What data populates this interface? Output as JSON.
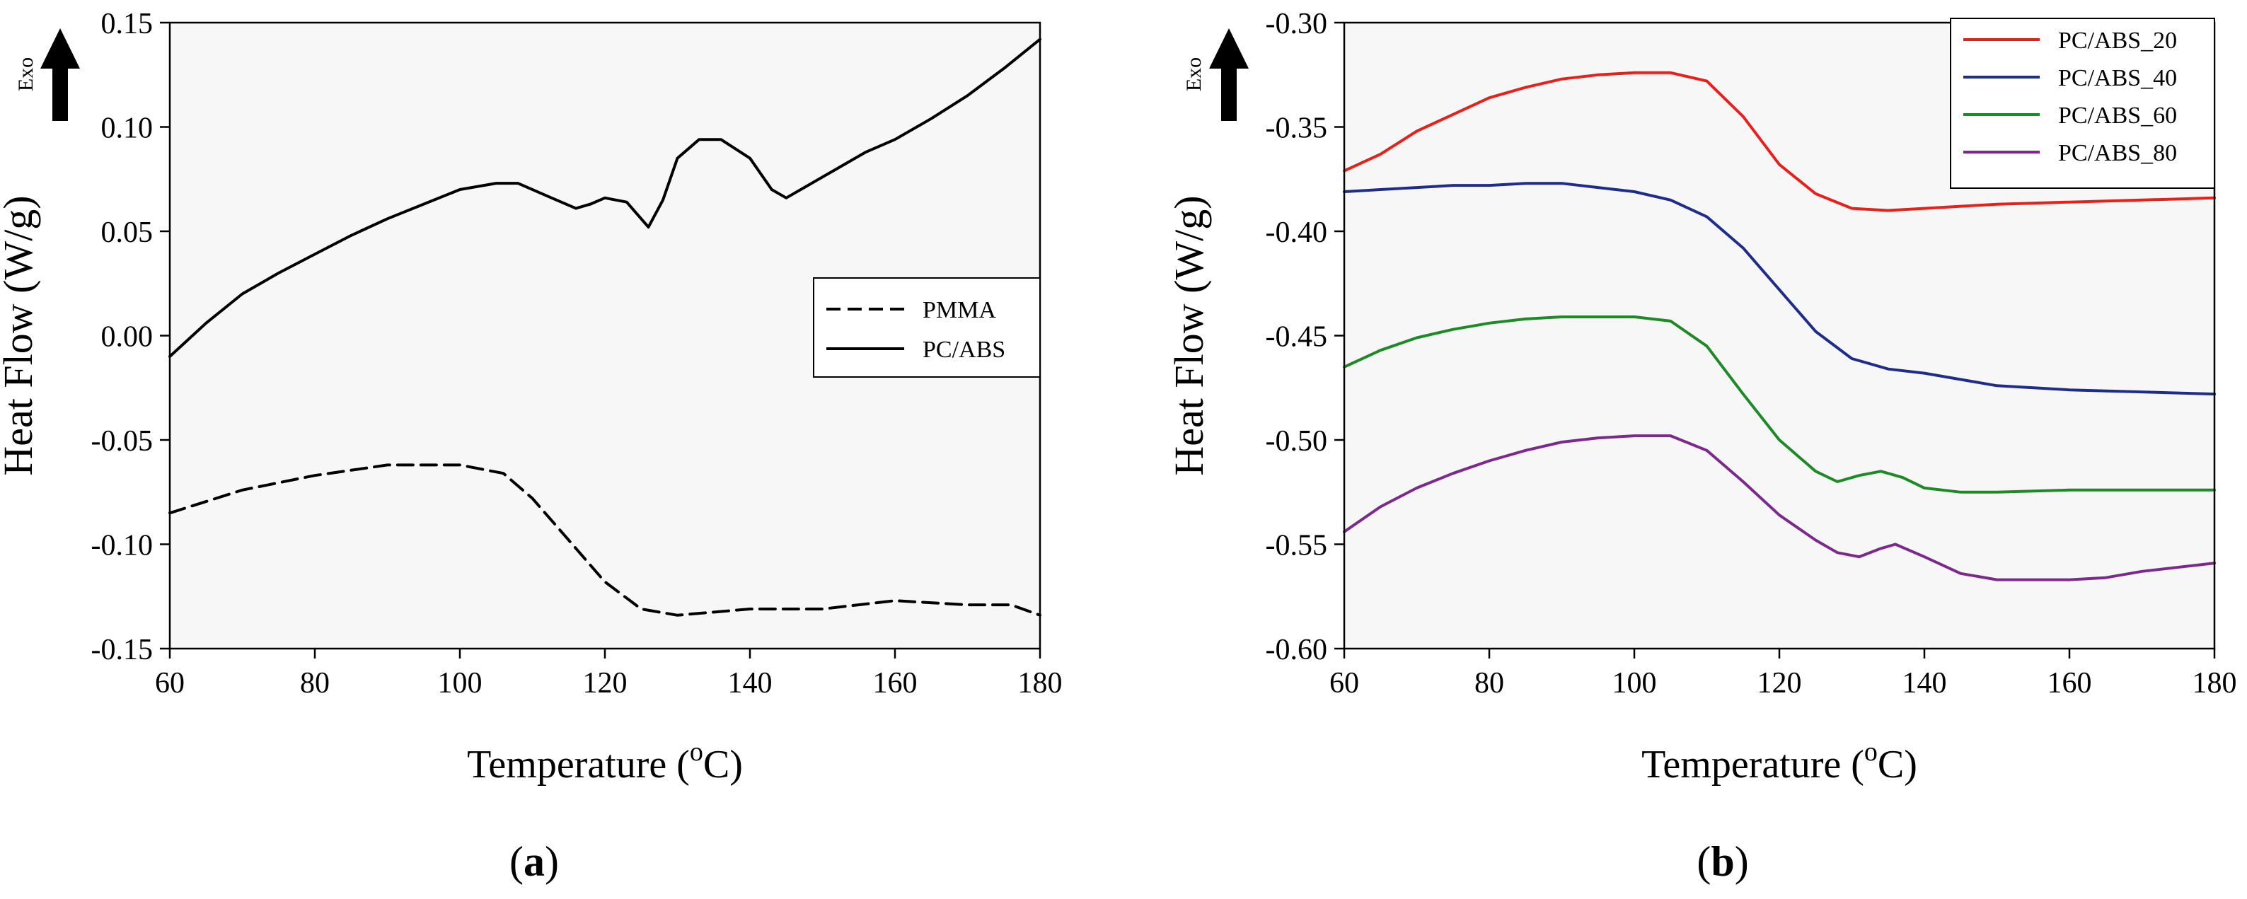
{
  "chart_data": [
    {
      "panel": "a",
      "panel_label": "(a)",
      "type": "line",
      "xlabel": "Temperature (oC)",
      "xlabel_parts": {
        "pre": "Temperature (",
        "sup": "o",
        "post": "C)"
      },
      "ylabel": "Heat Flow (W/g)",
      "exo_label": "Exo",
      "xlim": [
        60,
        180
      ],
      "ylim": [
        -0.15,
        0.15
      ],
      "xticks": [
        60,
        80,
        100,
        120,
        140,
        160,
        180
      ],
      "xtick_labels": [
        "60",
        "80",
        "100",
        "120",
        "140",
        "160",
        "180"
      ],
      "yticks": [
        -0.15,
        -0.1,
        -0.05,
        0.0,
        0.05,
        0.1,
        0.15
      ],
      "ytick_labels": [
        "-0.15",
        "-0.10",
        "-0.05",
        "0.00",
        "0.05",
        "0.10",
        "0.15"
      ],
      "legend_position": "middle-right",
      "grid": false,
      "series": [
        {
          "name": "PMMA",
          "style": "dashed",
          "color": "#000000",
          "points": [
            [
              60,
              -0.085
            ],
            [
              70,
              -0.074
            ],
            [
              80,
              -0.067
            ],
            [
              90,
              -0.062
            ],
            [
              100,
              -0.062
            ],
            [
              106,
              -0.066
            ],
            [
              110,
              -0.078
            ],
            [
              115,
              -0.098
            ],
            [
              120,
              -0.118
            ],
            [
              125,
              -0.131
            ],
            [
              130,
              -0.134
            ],
            [
              140,
              -0.131
            ],
            [
              150,
              -0.131
            ],
            [
              160,
              -0.127
            ],
            [
              170,
              -0.129
            ],
            [
              176,
              -0.129
            ],
            [
              180,
              -0.134
            ]
          ]
        },
        {
          "name": "PC/ABS",
          "style": "solid",
          "color": "#000000",
          "points": [
            [
              60,
              -0.01
            ],
            [
              65,
              0.006
            ],
            [
              70,
              0.02
            ],
            [
              75,
              0.03
            ],
            [
              80,
              0.039
            ],
            [
              85,
              0.048
            ],
            [
              90,
              0.056
            ],
            [
              95,
              0.063
            ],
            [
              100,
              0.07
            ],
            [
              105,
              0.073
            ],
            [
              108,
              0.073
            ],
            [
              112,
              0.067
            ],
            [
              116,
              0.061
            ],
            [
              118,
              0.063
            ],
            [
              120,
              0.066
            ],
            [
              123,
              0.064
            ],
            [
              126,
              0.052
            ],
            [
              128,
              0.065
            ],
            [
              130,
              0.085
            ],
            [
              133,
              0.094
            ],
            [
              136,
              0.094
            ],
            [
              140,
              0.085
            ],
            [
              143,
              0.07
            ],
            [
              145,
              0.066
            ],
            [
              148,
              0.072
            ],
            [
              152,
              0.08
            ],
            [
              156,
              0.088
            ],
            [
              160,
              0.094
            ],
            [
              165,
              0.104
            ],
            [
              170,
              0.115
            ],
            [
              175,
              0.128
            ],
            [
              180,
              0.142
            ]
          ]
        }
      ]
    },
    {
      "panel": "b",
      "panel_label": "(b)",
      "type": "line",
      "xlabel": "Temperature (oC)",
      "xlabel_parts": {
        "pre": "Temperature (",
        "sup": "o",
        "post": "C)"
      },
      "ylabel": "Heat Flow (W/g)",
      "exo_label": "Exo",
      "xlim": [
        60,
        180
      ],
      "ylim": [
        -0.6,
        -0.3
      ],
      "xticks": [
        60,
        80,
        100,
        120,
        140,
        160,
        180
      ],
      "xtick_labels": [
        "60",
        "80",
        "100",
        "120",
        "140",
        "160",
        "180"
      ],
      "yticks": [
        -0.6,
        -0.55,
        -0.5,
        -0.45,
        -0.4,
        -0.35,
        -0.3
      ],
      "ytick_labels": [
        "-0.60",
        "-0.55",
        "-0.50",
        "-0.45",
        "-0.40",
        "-0.35",
        "-0.30"
      ],
      "legend_position": "top-right",
      "grid": false,
      "series": [
        {
          "name": "PC/ABS_20",
          "style": "solid",
          "color": "#e8201a",
          "points": [
            [
              60,
              -0.371
            ],
            [
              65,
              -0.363
            ],
            [
              70,
              -0.352
            ],
            [
              75,
              -0.344
            ],
            [
              80,
              -0.336
            ],
            [
              85,
              -0.331
            ],
            [
              90,
              -0.327
            ],
            [
              95,
              -0.325
            ],
            [
              100,
              -0.324
            ],
            [
              105,
              -0.324
            ],
            [
              110,
              -0.328
            ],
            [
              115,
              -0.345
            ],
            [
              120,
              -0.368
            ],
            [
              125,
              -0.382
            ],
            [
              130,
              -0.389
            ],
            [
              135,
              -0.39
            ],
            [
              140,
              -0.389
            ],
            [
              150,
              -0.387
            ],
            [
              160,
              -0.386
            ],
            [
              170,
              -0.385
            ],
            [
              180,
              -0.384
            ]
          ]
        },
        {
          "name": "PC/ABS_40",
          "style": "solid",
          "color": "#1f2d8a",
          "points": [
            [
              60,
              -0.381
            ],
            [
              65,
              -0.38
            ],
            [
              70,
              -0.379
            ],
            [
              75,
              -0.378
            ],
            [
              80,
              -0.378
            ],
            [
              85,
              -0.377
            ],
            [
              90,
              -0.377
            ],
            [
              95,
              -0.379
            ],
            [
              100,
              -0.381
            ],
            [
              105,
              -0.385
            ],
            [
              110,
              -0.393
            ],
            [
              115,
              -0.408
            ],
            [
              120,
              -0.428
            ],
            [
              125,
              -0.448
            ],
            [
              130,
              -0.461
            ],
            [
              135,
              -0.466
            ],
            [
              140,
              -0.468
            ],
            [
              150,
              -0.474
            ],
            [
              160,
              -0.476
            ],
            [
              170,
              -0.477
            ],
            [
              180,
              -0.478
            ]
          ]
        },
        {
          "name": "PC/ABS_60",
          "style": "solid",
          "color": "#1e8a26",
          "points": [
            [
              60,
              -0.465
            ],
            [
              65,
              -0.457
            ],
            [
              70,
              -0.451
            ],
            [
              75,
              -0.447
            ],
            [
              80,
              -0.444
            ],
            [
              85,
              -0.442
            ],
            [
              90,
              -0.441
            ],
            [
              95,
              -0.441
            ],
            [
              100,
              -0.441
            ],
            [
              105,
              -0.443
            ],
            [
              110,
              -0.455
            ],
            [
              115,
              -0.478
            ],
            [
              120,
              -0.5
            ],
            [
              125,
              -0.515
            ],
            [
              128,
              -0.52
            ],
            [
              131,
              -0.517
            ],
            [
              134,
              -0.515
            ],
            [
              137,
              -0.518
            ],
            [
              140,
              -0.523
            ],
            [
              145,
              -0.525
            ],
            [
              150,
              -0.525
            ],
            [
              160,
              -0.524
            ],
            [
              170,
              -0.524
            ],
            [
              180,
              -0.524
            ]
          ]
        },
        {
          "name": "PC/ABS_80",
          "style": "solid",
          "color": "#7b2a8c",
          "points": [
            [
              60,
              -0.544
            ],
            [
              65,
              -0.532
            ],
            [
              70,
              -0.523
            ],
            [
              75,
              -0.516
            ],
            [
              80,
              -0.51
            ],
            [
              85,
              -0.505
            ],
            [
              90,
              -0.501
            ],
            [
              95,
              -0.499
            ],
            [
              100,
              -0.498
            ],
            [
              105,
              -0.498
            ],
            [
              110,
              -0.505
            ],
            [
              115,
              -0.52
            ],
            [
              120,
              -0.536
            ],
            [
              125,
              -0.548
            ],
            [
              128,
              -0.554
            ],
            [
              131,
              -0.556
            ],
            [
              134,
              -0.552
            ],
            [
              136,
              -0.55
            ],
            [
              140,
              -0.556
            ],
            [
              145,
              -0.564
            ],
            [
              150,
              -0.567
            ],
            [
              160,
              -0.567
            ],
            [
              165,
              -0.566
            ],
            [
              170,
              -0.563
            ],
            [
              180,
              -0.559
            ]
          ]
        }
      ]
    }
  ]
}
